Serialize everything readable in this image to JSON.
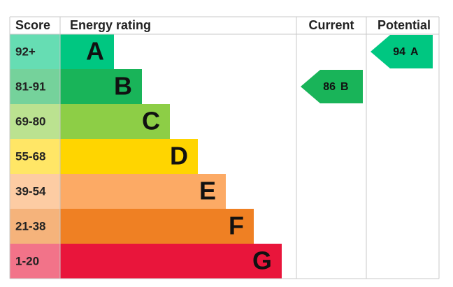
{
  "chart_data": {
    "type": "epc",
    "headers": [
      "Score",
      "Energy rating",
      "Current",
      "Potential"
    ],
    "bands": [
      {
        "range": "92+",
        "letter": "A",
        "color": "#00c781"
      },
      {
        "range": "81-91",
        "letter": "B",
        "color": "#19b459"
      },
      {
        "range": "69-80",
        "letter": "C",
        "color": "#8dce46"
      },
      {
        "range": "55-68",
        "letter": "D",
        "color": "#ffd500"
      },
      {
        "range": "39-54",
        "letter": "E",
        "color": "#fcaa65"
      },
      {
        "range": "21-38",
        "letter": "F",
        "color": "#ef8023"
      },
      {
        "range": "1-20",
        "letter": "G",
        "color": "#e9153b"
      }
    ],
    "current": {
      "value": 86,
      "letter": "B"
    },
    "potential": {
      "value": 94,
      "letter": "A"
    }
  }
}
